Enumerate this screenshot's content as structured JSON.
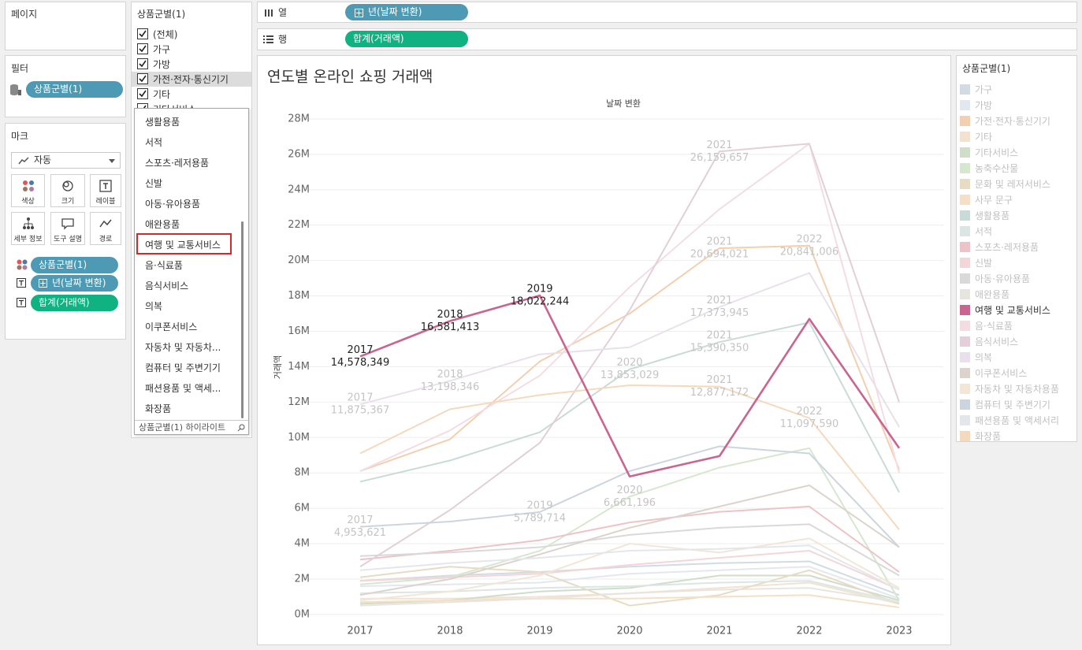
{
  "pages_panel": {
    "title": "페이지"
  },
  "filters_panel": {
    "title": "필터",
    "pills": [
      "상품군별(1)"
    ]
  },
  "marks_panel": {
    "title": "마크",
    "mark_type": "자동",
    "buttons": [
      "색상",
      "크기",
      "레이블",
      "세부 정보",
      "도구 설명",
      "경로"
    ],
    "pills": [
      "상품군별(1)",
      "년(날짜 변환)",
      "합계(거래액)"
    ]
  },
  "filter_card": {
    "title": "상품군별(1)",
    "items": [
      "(전체)",
      "가구",
      "가방",
      "가전·전자·통신기기",
      "기타",
      "기타서비스"
    ],
    "dropdown_items": [
      "생활용품",
      "서적",
      "스포츠·레저용품",
      "신발",
      "아동·유아용품",
      "애완용품",
      "여행 및 교통서비스",
      "음·식료품",
      "음식서비스",
      "의복",
      "이쿠폰서비스",
      "자동차 및 자동차...",
      "컴퓨터 및 주변기기",
      "패션용품 및 액세...",
      "화장품"
    ],
    "selected_index": 6,
    "footer": "상품군별(1) 하이라이트"
  },
  "shelves": {
    "columns": {
      "label": "열",
      "pill": "년(날짜 변환)"
    },
    "rows": {
      "label": "행",
      "pill": "합계(거래액)"
    }
  },
  "chart_data": {
    "type": "line",
    "title": "연도별 온라인 쇼핑 거래액",
    "header": "날짜 변환",
    "y_label": "거래액",
    "legend_title": "상품군별(1)",
    "categories": [
      "2017",
      "2018",
      "2019",
      "2020",
      "2021",
      "2022",
      "2023"
    ],
    "ylim": [
      -360000,
      28310000
    ],
    "yticks": [
      {
        "value": 0,
        "label": "0M"
      },
      {
        "value": 2000000,
        "label": "2M"
      },
      {
        "value": 4000000,
        "label": "4M"
      },
      {
        "value": 6000000,
        "label": "6M"
      },
      {
        "value": 8000000,
        "label": "8M"
      },
      {
        "value": 10000000,
        "label": "10M"
      },
      {
        "value": 12000000,
        "label": "12M"
      },
      {
        "value": 14000000,
        "label": "14M"
      },
      {
        "value": 16000000,
        "label": "16M"
      },
      {
        "value": 18000000,
        "label": "18M"
      },
      {
        "value": 20000000,
        "label": "20M"
      },
      {
        "value": 22000000,
        "label": "22M"
      },
      {
        "value": 24000000,
        "label": "24M"
      },
      {
        "value": 26000000,
        "label": "26M"
      },
      {
        "value": 28000000,
        "label": "28M"
      }
    ],
    "grid": true,
    "series": [
      {
        "name": "가구",
        "color": "#d2dbe3",
        "values": [
          1900000,
          2200000,
          2400000,
          2700000,
          2900000,
          3000000,
          1100000
        ]
      },
      {
        "name": "가방",
        "color": "#e2e8ee",
        "values": [
          1600000,
          1700000,
          1800000,
          2300000,
          2500000,
          2700000,
          900000
        ]
      },
      {
        "name": "가전·전자·통신기기",
        "color": "#f2cfae",
        "values": [
          8100000,
          9900000,
          14300000,
          17000000,
          20694021,
          20841006,
          8200000
        ],
        "value_labels": [
          null,
          null,
          null,
          null,
          "20,694,021",
          "20,841,006",
          null
        ]
      },
      {
        "name": "기타",
        "color": "#f3e2cf",
        "values": [
          900000,
          900000,
          1000000,
          1200000,
          1500000,
          1800000,
          600000
        ]
      },
      {
        "name": "기타서비스",
        "color": "#cfddc9",
        "values": [
          600000,
          800000,
          1300000,
          1500000,
          2200000,
          2200000,
          800000
        ]
      },
      {
        "name": "농축수산물",
        "color": "#d5e8cf",
        "values": [
          1700000,
          2100000,
          3600000,
          6661196,
          8300000,
          9400000,
          800000
        ],
        "value_labels": [
          null,
          null,
          null,
          "6,661,196",
          null,
          null,
          null
        ]
      },
      {
        "name": "문화 및 레저서비스",
        "color": "#e6dcc3",
        "values": [
          2100000,
          2700000,
          2400000,
          500000,
          1100000,
          2500000,
          600000
        ]
      },
      {
        "name": "사무 문구",
        "color": "#f5dfc6",
        "values": [
          700000,
          800000,
          900000,
          900000,
          1000000,
          1100000,
          400000
        ]
      },
      {
        "name": "생활용품",
        "color": "#c9dbd8",
        "values": [
          7500000,
          8700000,
          10300000,
          13853029,
          15390350,
          16500000,
          6900000
        ],
        "value_labels": [
          null,
          null,
          null,
          "13,853,029",
          "15,390,350",
          null,
          null
        ]
      },
      {
        "name": "서적",
        "color": "#dbe6e4",
        "values": [
          1200000,
          1300000,
          1500000,
          1600000,
          1800000,
          1900000,
          700000
        ]
      },
      {
        "name": "스포츠·레저용품",
        "color": "#edc3c8",
        "values": [
          3100000,
          3600000,
          4200000,
          5200000,
          5800000,
          6100000,
          2400000
        ]
      },
      {
        "name": "신발",
        "color": "#f3d6d9",
        "values": [
          1900000,
          2100000,
          2300000,
          2800000,
          3200000,
          3600000,
          1400000
        ]
      },
      {
        "name": "아동·유아용품",
        "color": "#d9d9d9",
        "values": [
          3300000,
          3500000,
          3800000,
          4500000,
          4900000,
          5100000,
          2200000
        ]
      },
      {
        "name": "애완용품",
        "color": "#e7e5e0",
        "values": [
          500000,
          700000,
          900000,
          1200000,
          1400000,
          1500000,
          700000
        ]
      },
      {
        "name": "여행 및 교통서비스",
        "color": "#c9658f",
        "highlighted": true,
        "values": [
          14578349,
          16581413,
          18022244,
          7800000,
          8950000,
          16700000,
          9400000
        ],
        "value_labels": [
          "14,578,349",
          "16,581,413",
          "18,022,244",
          null,
          null,
          null,
          null
        ]
      },
      {
        "name": "음·식료품",
        "color": "#f3dde2",
        "values": [
          8100000,
          10400000,
          13500000,
          18500000,
          22900000,
          26600000,
          8000000
        ]
      },
      {
        "name": "음식서비스",
        "color": "#e2cfd8",
        "values": [
          2700000,
          5900000,
          9700000,
          17200000,
          26159657,
          26600000,
          12000000
        ],
        "value_labels": [
          null,
          null,
          null,
          null,
          "26,159,657",
          null,
          null
        ]
      },
      {
        "name": "의복",
        "color": "#e8e0ea",
        "values": [
          11875367,
          13198346,
          14700000,
          15100000,
          17373945,
          19300000,
          10600000
        ],
        "value_labels": [
          "11,875,367",
          "13,198,346",
          null,
          null,
          "17,373,945",
          null,
          null
        ]
      },
      {
        "name": "이쿠폰서비스",
        "color": "#ddd3cd",
        "values": [
          1100000,
          2000000,
          3400000,
          4900000,
          6100000,
          7300000,
          3800000
        ]
      },
      {
        "name": "자동차 및 자동차용품",
        "color": "#f2e6d6",
        "values": [
          800000,
          1300000,
          2200000,
          4000000,
          3500000,
          4300000,
          1500000
        ]
      },
      {
        "name": "컴퓨터 및 주변기기",
        "color": "#ccd5df",
        "values": [
          4953621,
          5250000,
          5789714,
          8100000,
          9500000,
          9100000,
          3800000
        ],
        "value_labels": [
          "4,953,621",
          null,
          "5,789,714",
          null,
          null,
          null,
          null
        ]
      },
      {
        "name": "패션용품 및 액세서리",
        "color": "#e3e7ec",
        "values": [
          2500000,
          2900000,
          3200000,
          3600000,
          3700000,
          3900000,
          1400000
        ]
      },
      {
        "name": "화장품",
        "color": "#f5d9bd",
        "values": [
          9100000,
          11600000,
          12400000,
          12950000,
          12877172,
          11097590,
          4800000
        ],
        "value_labels": [
          null,
          null,
          null,
          null,
          "12,877,172",
          "11,097,590",
          null
        ]
      }
    ]
  }
}
